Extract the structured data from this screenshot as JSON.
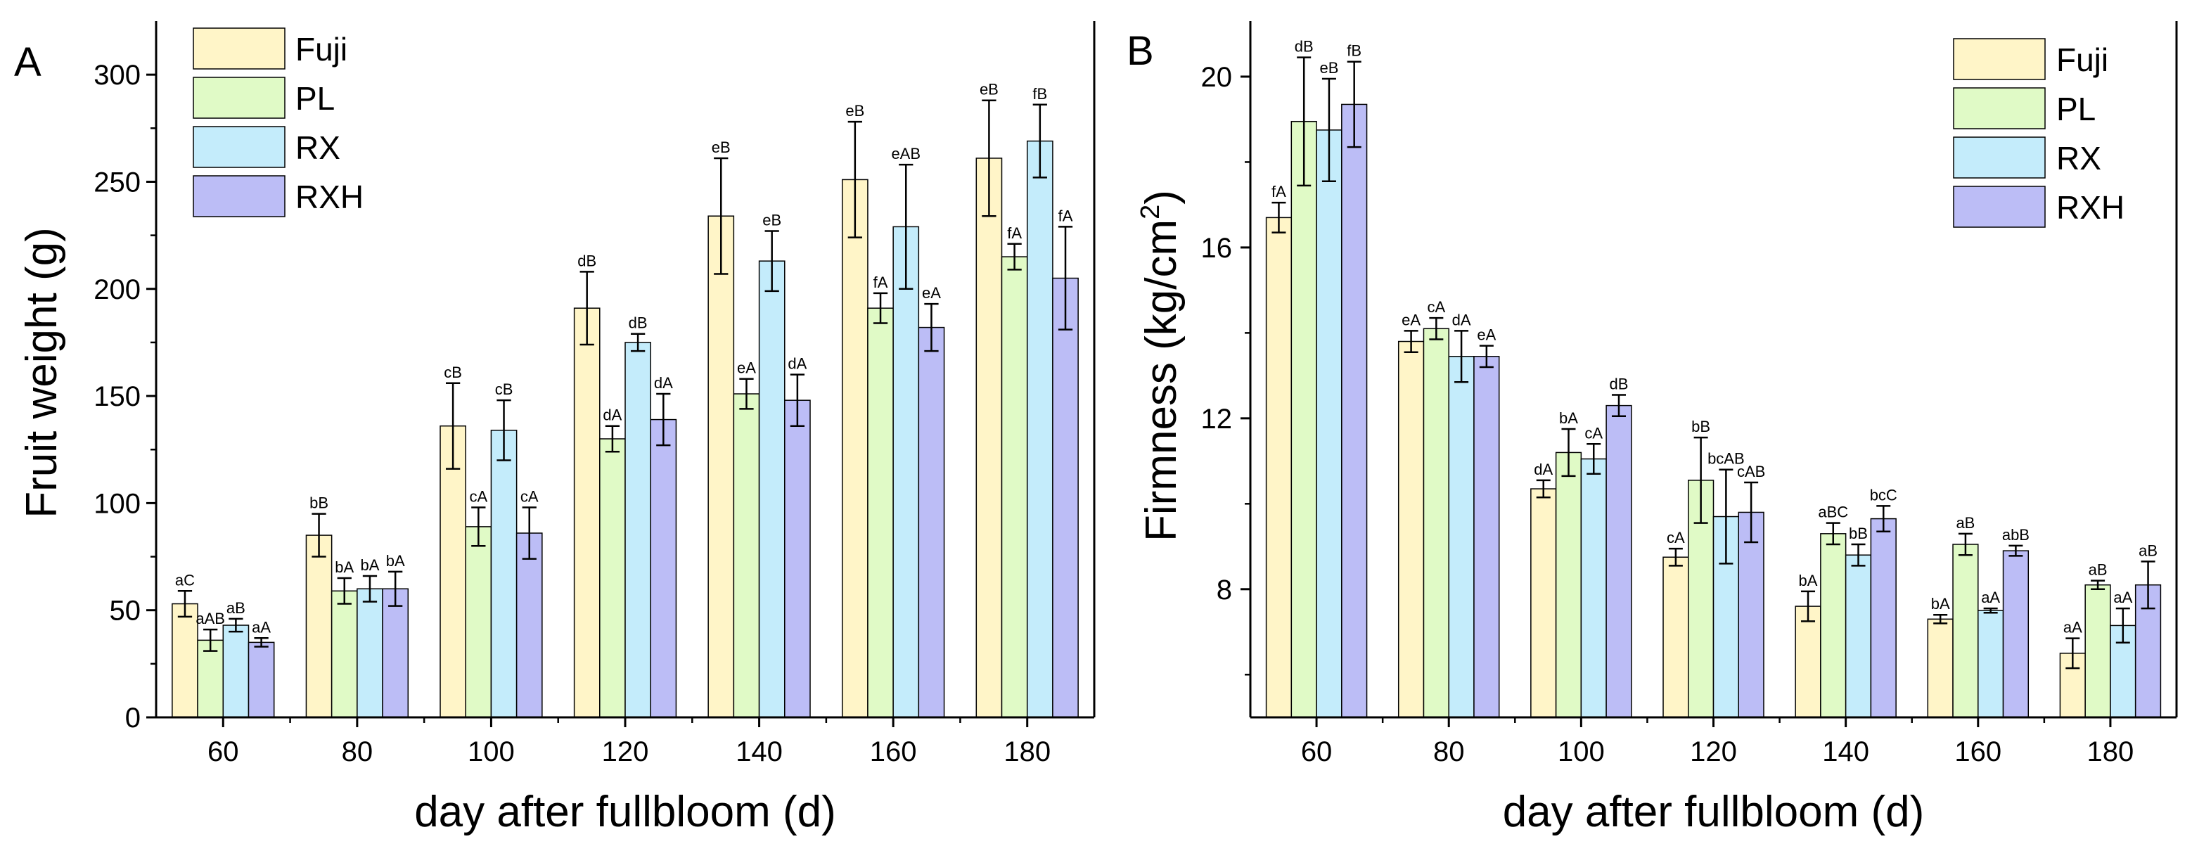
{
  "series_colors": {
    "Fuji": "#fff5c8",
    "PL": "#e0fac6",
    "RX": "#c4ecfb",
    "RXH": "#bcbdf6"
  },
  "chart_data": [
    {
      "panel": "A",
      "type": "bar",
      "title": "",
      "xlabel": "day after fullbloom (d)",
      "ylabel": "Fruit weight (g)",
      "ylim": [
        0,
        325
      ],
      "yticks": [
        0,
        50,
        100,
        150,
        200,
        250,
        300
      ],
      "grid": false,
      "legend_position": "top-left",
      "categories": [
        "60",
        "80",
        "100",
        "120",
        "140",
        "160",
        "180"
      ],
      "series": [
        {
          "name": "Fuji",
          "values": [
            53,
            85,
            136,
            191,
            234,
            251,
            261
          ],
          "errors": [
            6,
            10,
            20,
            17,
            27,
            27,
            27
          ],
          "labels": [
            "aC",
            "bB",
            "cB",
            "dB",
            "eB",
            "eB",
            "eB"
          ]
        },
        {
          "name": "PL",
          "values": [
            36,
            59,
            89,
            130,
            151,
            191,
            215
          ],
          "errors": [
            5,
            6,
            9,
            6,
            7,
            7,
            6
          ],
          "labels": [
            "aAB",
            "bA",
            "cA",
            "dA",
            "eA",
            "fA",
            "fA"
          ]
        },
        {
          "name": "RX",
          "values": [
            43,
            60,
            134,
            175,
            213,
            229,
            269
          ],
          "errors": [
            3,
            6,
            14,
            4,
            14,
            29,
            17
          ],
          "labels": [
            "aB",
            "bA",
            "cB",
            "dB",
            "eB",
            "eAB",
            "fB"
          ]
        },
        {
          "name": "RXH",
          "values": [
            35,
            60,
            86,
            139,
            148,
            182,
            205
          ],
          "errors": [
            2,
            8,
            12,
            12,
            12,
            11,
            24
          ],
          "labels": [
            "aA",
            "bA",
            "cA",
            "dA",
            "dA",
            "eA",
            "fA"
          ]
        }
      ]
    },
    {
      "panel": "B",
      "type": "bar",
      "title": "",
      "xlabel": "day after fullbloom (d)",
      "ylabel": "Firmness (kg/cm",
      "ylabel_superscript": "2",
      "ylabel_suffix": ")",
      "ylim": [
        5,
        21.3
      ],
      "yticks": [
        8,
        12,
        16,
        20
      ],
      "grid": false,
      "legend_position": "top-right",
      "categories": [
        "60",
        "80",
        "100",
        "120",
        "140",
        "160",
        "180"
      ],
      "series": [
        {
          "name": "Fuji",
          "values": [
            16.7,
            13.8,
            10.35,
            8.75,
            7.6,
            7.3,
            6.5
          ],
          "errors": [
            0.35,
            0.25,
            0.2,
            0.2,
            0.35,
            0.1,
            0.35
          ],
          "labels": [
            "fA",
            "eA",
            "dA",
            "cA",
            "bA",
            "bA",
            "aA"
          ]
        },
        {
          "name": "PL",
          "values": [
            18.95,
            14.1,
            11.2,
            10.55,
            9.3,
            9.05,
            8.1
          ],
          "errors": [
            1.5,
            0.25,
            0.55,
            1.0,
            0.25,
            0.25,
            0.1
          ],
          "labels": [
            "dB",
            "cA",
            "bA",
            "bB",
            "aBC",
            "aB",
            "aB"
          ]
        },
        {
          "name": "RX",
          "values": [
            18.75,
            13.45,
            11.05,
            9.7,
            8.8,
            7.5,
            7.15
          ],
          "errors": [
            1.2,
            0.6,
            0.35,
            1.1,
            0.25,
            0.05,
            0.4
          ],
          "labels": [
            "eB",
            "dA",
            "cA",
            "bcAB",
            "bB",
            "aA",
            "aA"
          ]
        },
        {
          "name": "RXH",
          "values": [
            19.35,
            13.45,
            12.3,
            9.8,
            9.65,
            8.9,
            8.1
          ],
          "errors": [
            1.0,
            0.25,
            0.25,
            0.7,
            0.3,
            0.12,
            0.55
          ],
          "labels": [
            "fB",
            "eA",
            "dB",
            "cAB",
            "bcC",
            "abB",
            "aB"
          ]
        }
      ]
    }
  ]
}
